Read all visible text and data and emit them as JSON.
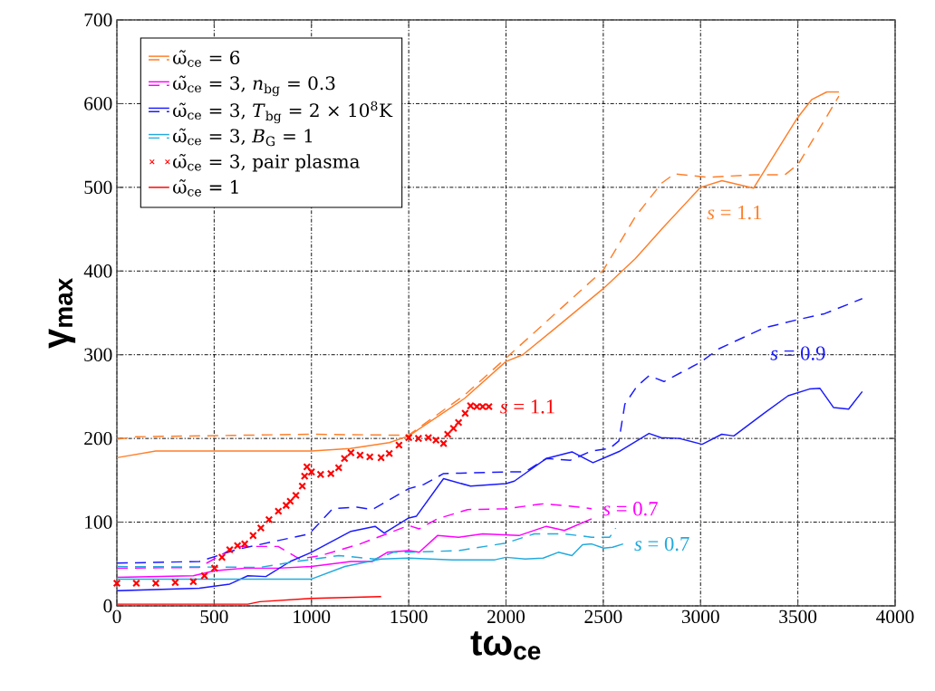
{
  "chart_data": {
    "type": "line",
    "xlabel": "tω$_{ce}$",
    "ylabel": "γ$_{max}$",
    "xlim": [
      0,
      4000
    ],
    "ylim": [
      0,
      700
    ],
    "xticks": [
      0,
      500,
      1000,
      1500,
      2000,
      2500,
      3000,
      3500,
      4000
    ],
    "yticks": [
      0,
      100,
      200,
      300,
      400,
      500,
      600,
      700
    ],
    "grid": true,
    "legend": "top left",
    "series": [
      {
        "name": "ω̃$_{ce}$ = 6",
        "color": "#ff7f2a",
        "x": [
          0,
          200,
          1000,
          1200,
          1400,
          1500,
          1788,
          2000,
          2086,
          2255,
          2500,
          2665,
          2800,
          3000,
          3110,
          3272,
          3495,
          3572,
          3649,
          3711
        ],
        "values": [
          177,
          185,
          185,
          188,
          195,
          203,
          248,
          292,
          300,
          332,
          379,
          415,
          450,
          500,
          508,
          499,
          582,
          605,
          614,
          614
        ]
      },
      {
        "color": "#ff7f2a",
        "line_style": "dashed",
        "x": [
          0,
          100,
          1000,
          1400,
          1500,
          1788,
          2000,
          2500,
          2665,
          2800,
          2865,
          3034,
          3280,
          3434,
          3503,
          3711
        ],
        "values": [
          199,
          202,
          205,
          204,
          204,
          252,
          296,
          401,
          465,
          505,
          516,
          512,
          515,
          515,
          528,
          609
        ]
      },
      {
        "name": "ω̃$_{ce}$ = 3, *n*$_{bg}$ = 0.3",
        "color": "#ff00ff",
        "x": [
          0,
          393,
          502,
          657,
          829,
          1000,
          1203,
          1312,
          1390,
          1500,
          1554,
          1648,
          1756,
          1880,
          2067,
          2207,
          2300,
          2440
        ],
        "values": [
          34,
          36,
          42,
          45,
          45,
          47,
          53,
          53,
          64,
          66,
          64,
          84,
          82,
          86,
          84,
          95,
          90,
          104
        ]
      },
      {
        "color": "#ff00ff",
        "line_style": "dashed",
        "x": [
          0,
          424,
          611,
          829,
          938,
          1047,
          1250,
          1500,
          1554,
          1648,
          1803,
          2000,
          2191,
          2377,
          2440
        ],
        "values": [
          45,
          46,
          71,
          71,
          56,
          60,
          74,
          96,
          92,
          104,
          115,
          116,
          122,
          118,
          116
        ]
      },
      {
        "name": "ω̃$_{ce}$ = 3, *T*$_{bg}$ = 2 × 10$^{8}$K",
        "color": "#1a1aff",
        "x": [
          0,
          424,
          580,
          673,
          766,
          891,
          1000,
          1203,
          1327,
          1374,
          1500,
          1539,
          1679,
          1818,
          2000,
          2043,
          2207,
          2339,
          2447,
          2587,
          2735,
          2797,
          2890,
          3008,
          3109,
          3171,
          3326,
          3450,
          3559,
          3613,
          3683,
          3761,
          3831
        ],
        "values": [
          18,
          21,
          26,
          36,
          35,
          53,
          64,
          89,
          95,
          87,
          105,
          107,
          152,
          143,
          146,
          149,
          176,
          184,
          171,
          185,
          206,
          201,
          200,
          193,
          205,
          203,
          230,
          251,
          259,
          260,
          237,
          235,
          256
        ]
      },
      {
        "color": "#1a1aff",
        "line_style": "dashed",
        "x": [
          0,
          424,
          611,
          829,
          969,
          1000,
          1109,
          1234,
          1312,
          1500,
          1578,
          1679,
          2000,
          2098,
          2207,
          2331,
          2440,
          2533,
          2580,
          2611,
          2672,
          2735,
          2812,
          3000,
          3093,
          3326,
          3500,
          3637,
          3831
        ],
        "values": [
          51,
          53,
          67,
          78,
          85,
          89,
          116,
          118,
          115,
          140,
          145,
          158,
          160,
          160,
          176,
          174,
          185,
          188,
          197,
          241,
          262,
          275,
          268,
          291,
          307,
          332,
          342,
          349,
          367
        ]
      },
      {
        "name": "ω̃$_{ce}$ = 3, *B*$_{G}$ = 1",
        "color": "#22aadd",
        "x": [
          0,
          1000,
          1172,
          1358,
          1500,
          1725,
          1943,
          2000,
          2098,
          2191,
          2269,
          2339,
          2393,
          2440,
          2502,
          2548,
          2602
        ],
        "values": [
          32,
          32,
          47,
          56,
          57,
          55,
          55,
          58,
          56,
          57,
          64,
          60,
          73,
          74,
          69,
          70,
          74
        ]
      },
      {
        "color": "#22aadd",
        "line_style": "dashed",
        "x": [
          0,
          735,
          922,
          1016,
          1140,
          1327,
          1421,
          1500,
          1756,
          2000,
          2145,
          2300,
          2440,
          2533,
          2564
        ],
        "values": [
          47,
          46,
          53,
          56,
          60,
          56,
          64,
          64,
          66,
          75,
          86,
          86,
          82,
          82,
          93
        ]
      },
      {
        "name": "ω̃$_{ce}$ = 3, pair plasma",
        "color": "#ff0000",
        "type": "scatter",
        "marker": "cross",
        "x": [
          0,
          100,
          200,
          300,
          393,
          450,
          502,
          540,
          580,
          620,
          657,
          700,
          740,
          782,
          830,
          870,
          891,
          920,
          953,
          965,
          977,
          1000,
          1047,
          1100,
          1140,
          1170,
          1203,
          1250,
          1300,
          1358,
          1400,
          1450,
          1500,
          1550,
          1601,
          1640,
          1679,
          1700,
          1730,
          1756,
          1790,
          1818,
          1850,
          1880,
          1912
        ],
        "values": [
          27,
          27,
          27,
          28,
          29,
          36,
          45,
          58,
          67,
          72,
          74,
          84,
          93,
          103,
          113,
          120,
          125,
          132,
          143,
          155,
          166,
          160,
          157,
          158,
          165,
          176,
          183,
          180,
          178,
          177,
          182,
          192,
          201,
          200,
          201,
          198,
          194,
          205,
          212,
          219,
          230,
          239,
          238,
          238,
          238
        ]
      },
      {
        "name": "ω̃$_{ce}$ = 1",
        "color": "#ff0000",
        "x": [
          0,
          673,
          735,
          1000,
          1358
        ],
        "values": [
          2,
          2,
          5,
          9,
          11
        ]
      }
    ],
    "annotations": [
      {
        "text": "*s* = 1.1",
        "x": 1912,
        "y": 238
      },
      {
        "text": "*s* = 1.1",
        "x": 3000,
        "y": 500
      },
      {
        "text": "*s* = 0.9",
        "x": 3326,
        "y": 332
      },
      {
        "text": "*s* = 0.7",
        "x": 2440,
        "y": 116
      },
      {
        "text": "*s* = 0.7",
        "x": 2602,
        "y": 74
      }
    ]
  }
}
